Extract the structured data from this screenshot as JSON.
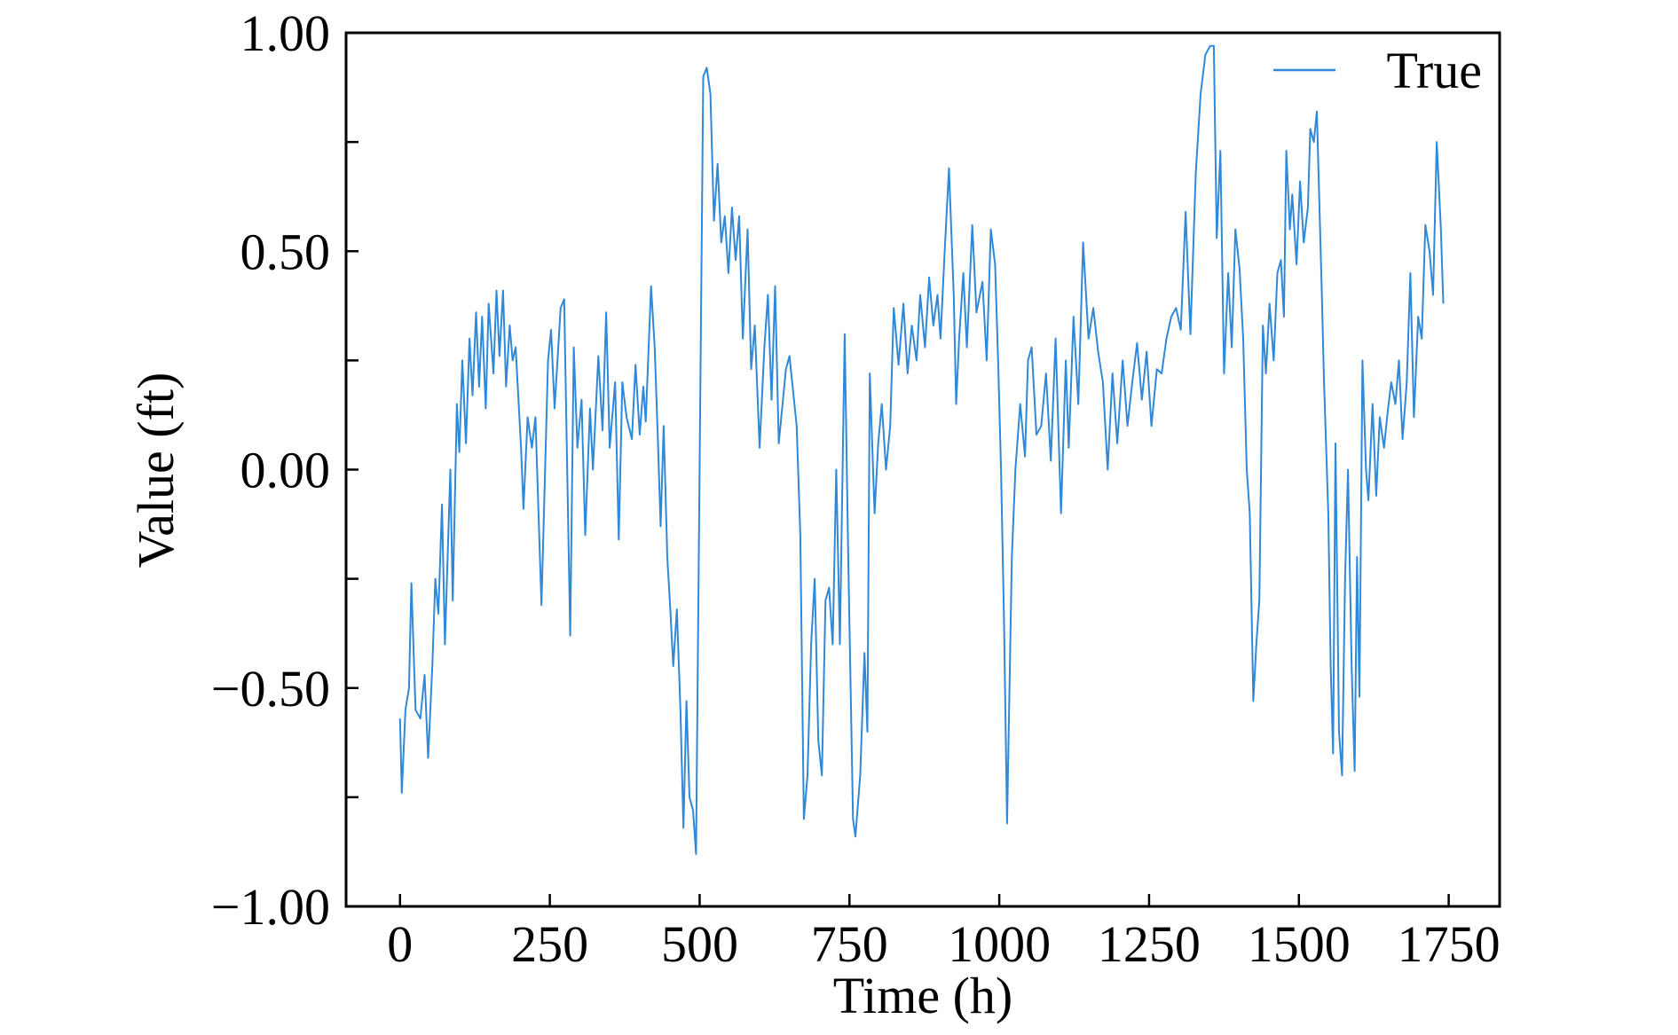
{
  "chart_data": {
    "type": "line",
    "xlabel": "Time (h)",
    "ylabel": "Value (ft)",
    "xlim": [
      -90,
      1835
    ],
    "xticks": [
      0,
      250,
      500,
      750,
      1000,
      1250,
      1500,
      1750
    ],
    "ylim": [
      -1,
      1
    ],
    "yticks": [
      {
        "value": -1,
        "label": "−1.00"
      },
      {
        "value": -0.5,
        "label": "−0.50"
      },
      {
        "value": 0,
        "label": "0.00"
      },
      {
        "value": 0.5,
        "label": "0.50"
      },
      {
        "value": 1,
        "label": "1.00"
      }
    ],
    "yminor_ticks": [
      -0.75,
      -0.25,
      0.25,
      0.75
    ],
    "legend": "upper right",
    "x": [
      0,
      3,
      9,
      15,
      19,
      26,
      34,
      41,
      47,
      54,
      59,
      64,
      70,
      75,
      84,
      88,
      95,
      99,
      104,
      110,
      116,
      121,
      127,
      132,
      137,
      143,
      148,
      156,
      161,
      166,
      172,
      177,
      183,
      188,
      193,
      202,
      206,
      213,
      220,
      226,
      236,
      247,
      252,
      258,
      268,
      274,
      279,
      284,
      290,
      296,
      303,
      309,
      317,
      322,
      331,
      338,
      344,
      350,
      359,
      365,
      371,
      378,
      387,
      393,
      400,
      406,
      410,
      419,
      425,
      430,
      435,
      440,
      446,
      451,
      456,
      462,
      468,
      473,
      478,
      483,
      489,
      494,
      506,
      512,
      518,
      524,
      530,
      536,
      542,
      548,
      554,
      560,
      566,
      572,
      580,
      586,
      592,
      600,
      608,
      614,
      620,
      626,
      632,
      644,
      650,
      662,
      668,
      674,
      680,
      686,
      692,
      698,
      704,
      710,
      716,
      722,
      728,
      734,
      742,
      748,
      756,
      760,
      768,
      775,
      780,
      784,
      792,
      798,
      804,
      811,
      818,
      824,
      832,
      840,
      847,
      854,
      862,
      868,
      876,
      883,
      890,
      897,
      902,
      909,
      916,
      924,
      928,
      933,
      940,
      946,
      955,
      962,
      972,
      979,
      986,
      993,
      998,
      1003,
      1008,
      1013,
      1021,
      1027,
      1035,
      1043,
      1048,
      1054,
      1062,
      1070,
      1078,
      1086,
      1094,
      1103,
      1111,
      1116,
      1124,
      1132,
      1140,
      1149,
      1157,
      1165,
      1173,
      1181,
      1189,
      1197,
      1206,
      1214,
      1222,
      1230,
      1238,
      1246,
      1254,
      1263,
      1271,
      1279,
      1287,
      1295,
      1303,
      1311,
      1319,
      1328,
      1336,
      1344,
      1352,
      1358,
      1363,
      1369,
      1375,
      1382,
      1388,
      1394,
      1401,
      1407,
      1413,
      1418,
      1424,
      1429,
      1434,
      1440,
      1445,
      1451,
      1458,
      1464,
      1470,
      1475,
      1479,
      1485,
      1489,
      1496,
      1502,
      1508,
      1515,
      1519,
      1525,
      1530,
      1534,
      1538,
      1542,
      1549,
      1553,
      1557,
      1561,
      1567,
      1572,
      1577,
      1582,
      1588,
      1593,
      1597,
      1601,
      1606,
      1612,
      1616,
      1623,
      1629,
      1635,
      1642,
      1648,
      1654,
      1661,
      1667,
      1673,
      1680,
      1686,
      1692,
      1699,
      1705,
      1711,
      1718,
      1724,
      1730,
      1737,
      1741
    ],
    "series": [
      {
        "name": "True",
        "color": "#2f88d8",
        "values": [
          -0.57,
          -0.74,
          -0.55,
          -0.5,
          -0.26,
          -0.55,
          -0.57,
          -0.47,
          -0.66,
          -0.45,
          -0.25,
          -0.33,
          -0.08,
          -0.4,
          0.0,
          -0.3,
          0.15,
          0.04,
          0.25,
          0.06,
          0.3,
          0.17,
          0.36,
          0.19,
          0.35,
          0.14,
          0.38,
          0.22,
          0.41,
          0.26,
          0.41,
          0.19,
          0.33,
          0.25,
          0.28,
          0.05,
          -0.09,
          0.12,
          0.05,
          0.12,
          -0.31,
          0.25,
          0.32,
          0.14,
          0.37,
          0.39,
          0.0,
          -0.38,
          0.28,
          0.05,
          0.16,
          -0.15,
          0.14,
          0.0,
          0.26,
          0.09,
          0.36,
          0.05,
          0.2,
          -0.16,
          0.2,
          0.12,
          0.07,
          0.24,
          0.08,
          0.19,
          0.11,
          0.42,
          0.28,
          0.08,
          -0.13,
          0.1,
          -0.2,
          -0.32,
          -0.45,
          -0.32,
          -0.55,
          -0.82,
          -0.53,
          -0.75,
          -0.78,
          -0.88,
          0.9,
          0.92,
          0.86,
          0.57,
          0.7,
          0.52,
          0.58,
          0.45,
          0.6,
          0.48,
          0.58,
          0.3,
          0.55,
          0.23,
          0.33,
          0.05,
          0.28,
          0.4,
          0.16,
          0.42,
          0.06,
          0.23,
          0.26,
          0.1,
          -0.15,
          -0.8,
          -0.7,
          -0.4,
          -0.25,
          -0.62,
          -0.7,
          -0.3,
          -0.27,
          -0.4,
          0.0,
          -0.4,
          0.31,
          -0.2,
          -0.8,
          -0.84,
          -0.7,
          -0.42,
          -0.6,
          0.22,
          -0.1,
          0.06,
          0.15,
          0.0,
          0.1,
          0.37,
          0.24,
          0.38,
          0.22,
          0.33,
          0.25,
          0.4,
          0.28,
          0.44,
          0.33,
          0.4,
          0.3,
          0.5,
          0.69,
          0.4,
          0.15,
          0.3,
          0.45,
          0.28,
          0.56,
          0.36,
          0.43,
          0.25,
          0.55,
          0.47,
          0.25,
          0.0,
          -0.35,
          -0.81,
          -0.2,
          0.0,
          0.15,
          0.03,
          0.25,
          0.28,
          0.08,
          0.1,
          0.22,
          0.02,
          0.3,
          -0.1,
          0.25,
          0.05,
          0.35,
          0.15,
          0.52,
          0.3,
          0.37,
          0.27,
          0.2,
          0.0,
          0.22,
          0.06,
          0.25,
          0.1,
          0.2,
          0.29,
          0.16,
          0.27,
          0.1,
          0.23,
          0.22,
          0.3,
          0.35,
          0.37,
          0.32,
          0.59,
          0.31,
          0.68,
          0.86,
          0.95,
          0.97,
          0.97,
          0.53,
          0.73,
          0.22,
          0.45,
          0.28,
          0.55,
          0.46,
          0.3,
          0.0,
          -0.1,
          -0.53,
          -0.4,
          -0.3,
          0.33,
          0.22,
          0.38,
          0.25,
          0.45,
          0.48,
          0.35,
          0.73,
          0.55,
          0.63,
          0.47,
          0.66,
          0.52,
          0.6,
          0.78,
          0.75,
          0.82,
          0.62,
          0.42,
          0.2,
          -0.1,
          -0.45,
          -0.65,
          0.06,
          -0.6,
          -0.7,
          -0.25,
          0.0,
          -0.45,
          -0.69,
          -0.2,
          -0.52,
          0.25,
          0.0,
          -0.07,
          0.15,
          -0.06,
          0.12,
          0.05,
          0.13,
          0.2,
          0.15,
          0.25,
          0.07,
          0.2,
          0.45,
          0.12,
          0.35,
          0.3,
          0.56,
          0.5,
          0.4,
          0.75,
          0.55,
          0.38
        ]
      }
    ]
  }
}
